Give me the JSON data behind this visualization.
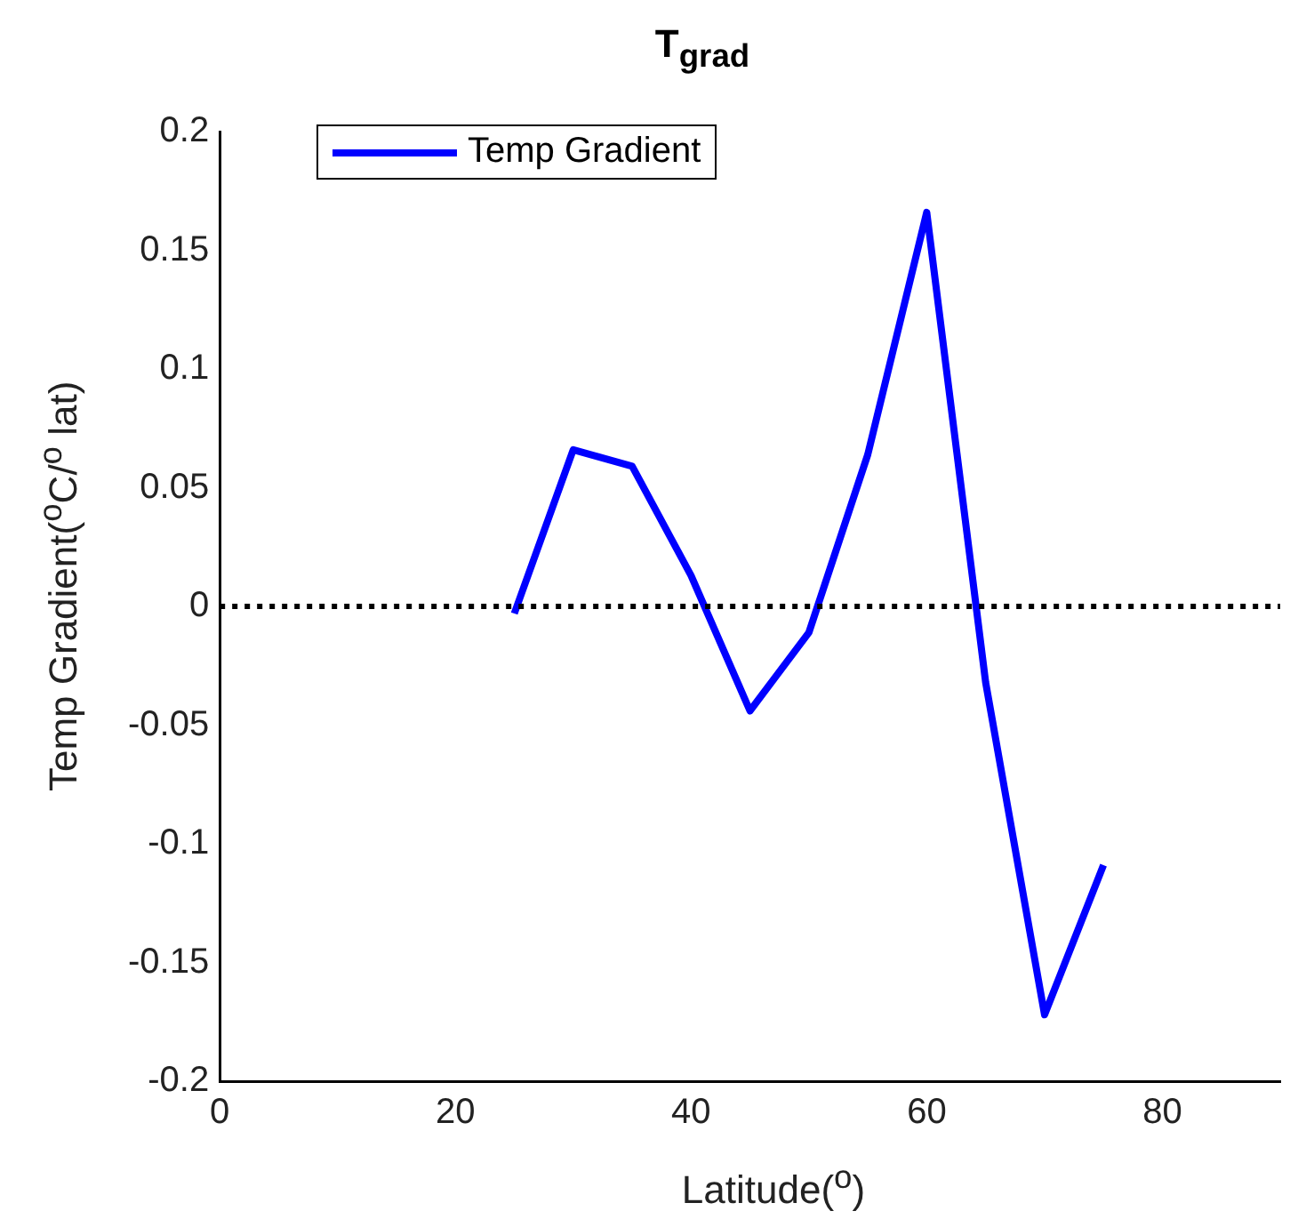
{
  "chart_data": {
    "type": "line",
    "title": "T$_{grad}$",
    "xlabel": "Latitude($^{o}$)",
    "ylabel": "Temp Gradient($^{o}$C/$^{o}$ lat)",
    "x": [
      25,
      30,
      35,
      40,
      45,
      50,
      55,
      60,
      65,
      70,
      75
    ],
    "series": [
      {
        "name": "Temp Gradient",
        "color": "#0000ff",
        "values": [
          -0.003,
          0.066,
          0.059,
          0.013,
          -0.044,
          -0.011,
          0.064,
          0.166,
          -0.032,
          -0.172,
          -0.109
        ]
      }
    ],
    "xlim": [
      0,
      90
    ],
    "xticks": [
      0,
      20,
      40,
      60,
      80
    ],
    "ylim": [
      -0.2,
      0.2
    ],
    "yticks": [
      -0.2,
      -0.15,
      -0.1,
      -0.05,
      0,
      0.05,
      0.1,
      0.15,
      0.2
    ],
    "ref_lines": [
      {
        "axis": "y",
        "value": 0,
        "color": "#000000",
        "line_style": "dotted"
      }
    ],
    "legend": "top left",
    "grid": false,
    "marker": "none",
    "line_style": "solid"
  }
}
